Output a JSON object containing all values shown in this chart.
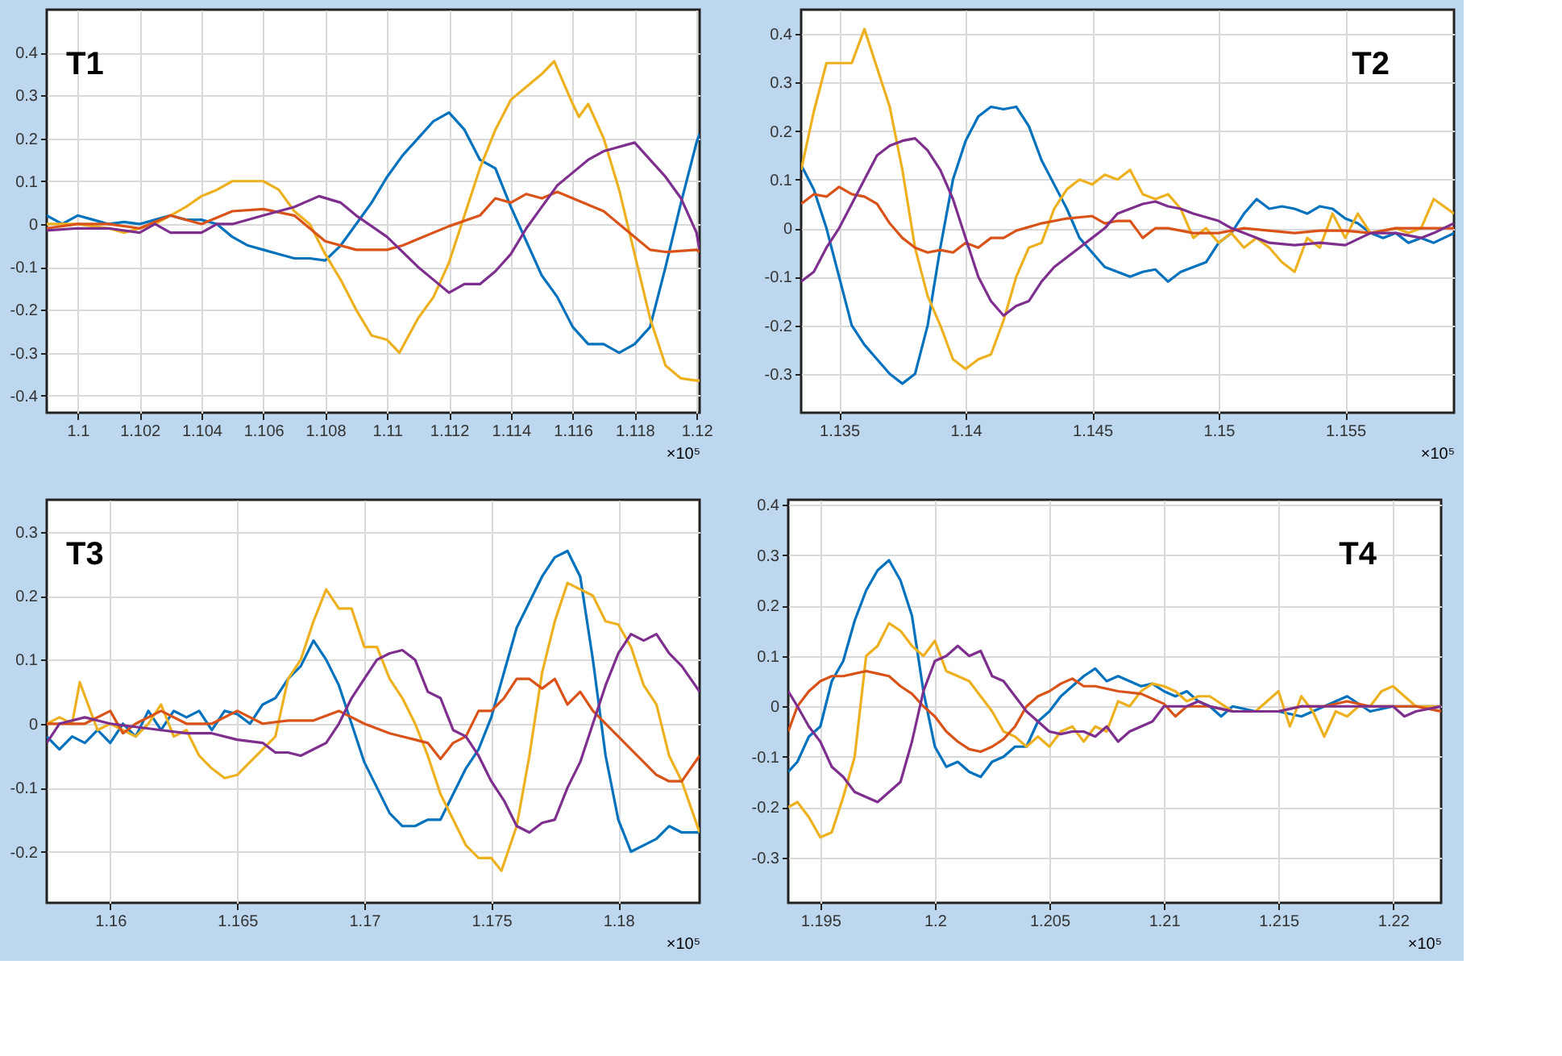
{
  "chart_data": [
    {
      "type": "line",
      "title": "T1",
      "xlabel": "×10⁵",
      "xlim": [
        1.099,
        1.1201
      ],
      "ylim": [
        -0.44,
        0.5
      ],
      "xticks": [
        1.1,
        1.102,
        1.104,
        1.106,
        1.108,
        1.11,
        1.112,
        1.114,
        1.116,
        1.118,
        1.12
      ],
      "yticks": [
        -0.4,
        -0.3,
        -0.2,
        -0.1,
        0,
        0.1,
        0.2,
        0.3,
        0.4
      ],
      "grid": true,
      "legend": false,
      "line_style": "solid",
      "series": [
        {
          "color": "#0072bd",
          "x": [
            1.099,
            1.0995,
            1.1,
            1.1005,
            1.101,
            1.1015,
            1.102,
            1.1025,
            1.103,
            1.1035,
            1.104,
            1.1045,
            1.105,
            1.1055,
            1.106,
            1.1065,
            1.107,
            1.1075,
            1.108,
            1.1085,
            1.109,
            1.1095,
            1.11,
            1.1105,
            1.111,
            1.1115,
            1.112,
            1.1125,
            1.113,
            1.1135,
            1.114,
            1.1145,
            1.115,
            1.1155,
            1.116,
            1.1165,
            1.117,
            1.1175,
            1.118,
            1.1185,
            1.119,
            1.1195,
            1.12,
            1.1201
          ],
          "values": [
            0.02,
            0.0,
            0.02,
            0.01,
            0.0,
            0.005,
            0.0,
            0.01,
            0.02,
            0.01,
            0.01,
            0.0,
            -0.03,
            -0.05,
            -0.06,
            -0.07,
            -0.08,
            -0.08,
            -0.085,
            -0.05,
            0.0,
            0.05,
            0.11,
            0.16,
            0.2,
            0.24,
            0.26,
            0.22,
            0.15,
            0.13,
            0.04,
            -0.04,
            -0.12,
            -0.17,
            -0.24,
            -0.28,
            -0.28,
            -0.3,
            -0.28,
            -0.24,
            -0.1,
            0.05,
            0.19,
            0.21
          ]
        },
        {
          "color": "#edb120",
          "x": [
            1.099,
            1.1,
            1.101,
            1.1015,
            1.102,
            1.1025,
            1.103,
            1.1035,
            1.104,
            1.1045,
            1.105,
            1.1055,
            1.106,
            1.1065,
            1.107,
            1.1075,
            1.108,
            1.1085,
            1.109,
            1.1095,
            1.11,
            1.1104,
            1.111,
            1.1115,
            1.112,
            1.1125,
            1.113,
            1.1135,
            1.114,
            1.1145,
            1.115,
            1.1154,
            1.116,
            1.1162,
            1.1165,
            1.117,
            1.1175,
            1.118,
            1.1185,
            1.119,
            1.1195,
            1.12,
            1.1201
          ],
          "values": [
            0.0,
            0.0,
            -0.01,
            -0.02,
            -0.01,
            0.0,
            0.02,
            0.04,
            0.065,
            0.08,
            0.1,
            0.1,
            0.1,
            0.08,
            0.03,
            0.0,
            -0.07,
            -0.13,
            -0.2,
            -0.26,
            -0.27,
            -0.3,
            -0.22,
            -0.17,
            -0.09,
            0.02,
            0.13,
            0.22,
            0.29,
            0.32,
            0.35,
            0.38,
            0.28,
            0.25,
            0.28,
            0.2,
            0.08,
            -0.07,
            -0.22,
            -0.33,
            -0.36,
            -0.365,
            -0.365
          ]
        },
        {
          "color": "#d95319",
          "x": [
            1.099,
            1.1,
            1.101,
            1.102,
            1.103,
            1.104,
            1.105,
            1.106,
            1.107,
            1.108,
            1.109,
            1.11,
            1.1105,
            1.111,
            1.112,
            1.113,
            1.1135,
            1.114,
            1.1145,
            1.115,
            1.1155,
            1.116,
            1.117,
            1.118,
            1.1185,
            1.119,
            1.12,
            1.1201
          ],
          "values": [
            -0.01,
            0.0,
            0.0,
            -0.01,
            0.02,
            0.0,
            0.03,
            0.035,
            0.02,
            -0.04,
            -0.06,
            -0.06,
            -0.05,
            -0.035,
            -0.005,
            0.02,
            0.06,
            0.05,
            0.07,
            0.06,
            0.075,
            0.06,
            0.03,
            -0.03,
            -0.06,
            -0.065,
            -0.06,
            -0.065
          ]
        },
        {
          "color": "#7e2f8e",
          "x": [
            1.099,
            1.1,
            1.101,
            1.102,
            1.1025,
            1.103,
            1.104,
            1.1045,
            1.105,
            1.106,
            1.107,
            1.1078,
            1.1085,
            1.109,
            1.11,
            1.111,
            1.1115,
            1.112,
            1.1125,
            1.113,
            1.1135,
            1.114,
            1.1145,
            1.115,
            1.1155,
            1.116,
            1.1165,
            1.117,
            1.118,
            1.1185,
            1.119,
            1.1195,
            1.12,
            1.1201
          ],
          "values": [
            -0.015,
            -0.01,
            -0.01,
            -0.02,
            0.0,
            -0.02,
            -0.02,
            0.0,
            0.0,
            0.02,
            0.04,
            0.065,
            0.05,
            0.02,
            -0.03,
            -0.1,
            -0.13,
            -0.16,
            -0.14,
            -0.14,
            -0.11,
            -0.07,
            -0.01,
            0.04,
            0.09,
            0.12,
            0.15,
            0.17,
            0.19,
            0.15,
            0.11,
            0.06,
            -0.02,
            -0.06
          ]
        }
      ]
    },
    {
      "type": "line",
      "title": "T2",
      "xlabel": "×10⁵",
      "xlim": [
        1.1335,
        1.1593
      ],
      "ylim": [
        -0.38,
        0.45
      ],
      "xticks": [
        1.135,
        1.14,
        1.145,
        1.15,
        1.155
      ],
      "yticks": [
        -0.3,
        -0.2,
        -0.1,
        0,
        0.1,
        0.2,
        0.3,
        0.4
      ],
      "grid": true,
      "legend": false,
      "line_style": "solid",
      "series": [
        {
          "color": "#0072bd",
          "x": [
            1.1335,
            1.134,
            1.1345,
            1.135,
            1.1355,
            1.136,
            1.1365,
            1.137,
            1.1375,
            1.138,
            1.1385,
            1.139,
            1.1395,
            1.14,
            1.1405,
            1.141,
            1.1415,
            1.142,
            1.1425,
            1.143,
            1.1435,
            1.144,
            1.1445,
            1.145,
            1.1455,
            1.146,
            1.1465,
            1.147,
            1.1475,
            1.148,
            1.1485,
            1.149,
            1.1495,
            1.15,
            1.1505,
            1.151,
            1.1515,
            1.152,
            1.1525,
            1.153,
            1.1535,
            1.154,
            1.1545,
            1.155,
            1.1555,
            1.156,
            1.1565,
            1.157,
            1.1575,
            1.158,
            1.1585,
            1.1593
          ],
          "values": [
            0.13,
            0.08,
            0.0,
            -0.1,
            -0.2,
            -0.24,
            -0.27,
            -0.3,
            -0.32,
            -0.3,
            -0.2,
            -0.04,
            0.1,
            0.18,
            0.23,
            0.25,
            0.245,
            0.25,
            0.21,
            0.14,
            0.09,
            0.04,
            -0.02,
            -0.05,
            -0.08,
            -0.09,
            -0.1,
            -0.09,
            -0.085,
            -0.11,
            -0.09,
            -0.08,
            -0.07,
            -0.03,
            -0.01,
            0.03,
            0.06,
            0.04,
            0.045,
            0.04,
            0.03,
            0.045,
            0.04,
            0.02,
            0.01,
            -0.01,
            -0.02,
            -0.01,
            -0.03,
            -0.02,
            -0.03,
            -0.01
          ]
        },
        {
          "color": "#edb120",
          "x": [
            1.1335,
            1.134,
            1.1345,
            1.135,
            1.1355,
            1.136,
            1.1365,
            1.137,
            1.1375,
            1.138,
            1.1385,
            1.139,
            1.1395,
            1.14,
            1.1405,
            1.141,
            1.1415,
            1.142,
            1.1425,
            1.143,
            1.1435,
            1.144,
            1.1445,
            1.145,
            1.1455,
            1.146,
            1.1465,
            1.147,
            1.1475,
            1.148,
            1.1485,
            1.149,
            1.1495,
            1.15,
            1.1505,
            1.151,
            1.1515,
            1.152,
            1.1525,
            1.153,
            1.1535,
            1.154,
            1.1545,
            1.155,
            1.1555,
            1.156,
            1.1565,
            1.157,
            1.1575,
            1.158,
            1.1585,
            1.1593
          ],
          "values": [
            0.12,
            0.24,
            0.34,
            0.34,
            0.34,
            0.41,
            0.33,
            0.25,
            0.12,
            -0.04,
            -0.14,
            -0.2,
            -0.27,
            -0.29,
            -0.27,
            -0.26,
            -0.19,
            -0.1,
            -0.04,
            -0.03,
            0.04,
            0.08,
            0.1,
            0.09,
            0.11,
            0.1,
            0.12,
            0.07,
            0.06,
            0.07,
            0.04,
            -0.02,
            0.0,
            -0.03,
            -0.01,
            -0.04,
            -0.02,
            -0.04,
            -0.07,
            -0.09,
            -0.02,
            -0.04,
            0.03,
            -0.02,
            0.03,
            -0.01,
            -0.005,
            0.0,
            -0.01,
            0.0,
            0.06,
            0.03
          ]
        },
        {
          "color": "#d95319",
          "x": [
            1.1335,
            1.134,
            1.1345,
            1.135,
            1.1355,
            1.136,
            1.1365,
            1.137,
            1.1375,
            1.138,
            1.1385,
            1.139,
            1.1395,
            1.14,
            1.1405,
            1.141,
            1.1415,
            1.142,
            1.143,
            1.144,
            1.145,
            1.1455,
            1.146,
            1.1465,
            1.147,
            1.1475,
            1.148,
            1.149,
            1.15,
            1.151,
            1.152,
            1.153,
            1.154,
            1.155,
            1.156,
            1.157,
            1.158,
            1.1593
          ],
          "values": [
            0.05,
            0.07,
            0.065,
            0.085,
            0.07,
            0.065,
            0.05,
            0.01,
            -0.02,
            -0.04,
            -0.05,
            -0.045,
            -0.05,
            -0.03,
            -0.04,
            -0.02,
            -0.02,
            -0.005,
            0.01,
            0.02,
            0.025,
            0.01,
            0.015,
            0.015,
            -0.02,
            0.0,
            0.0,
            -0.01,
            -0.01,
            0.0,
            -0.005,
            -0.01,
            -0.005,
            -0.005,
            -0.01,
            0.0,
            0.0,
            0.0
          ]
        },
        {
          "color": "#7e2f8e",
          "x": [
            1.1335,
            1.134,
            1.1345,
            1.135,
            1.1355,
            1.136,
            1.1365,
            1.137,
            1.1375,
            1.138,
            1.1385,
            1.139,
            1.1395,
            1.14,
            1.1405,
            1.141,
            1.1415,
            1.142,
            1.1425,
            1.143,
            1.1435,
            1.144,
            1.1445,
            1.145,
            1.1455,
            1.146,
            1.1465,
            1.147,
            1.1475,
            1.148,
            1.1485,
            1.149,
            1.15,
            1.1505,
            1.151,
            1.152,
            1.153,
            1.154,
            1.155,
            1.156,
            1.157,
            1.158,
            1.1585,
            1.1593
          ],
          "values": [
            -0.11,
            -0.09,
            -0.04,
            0.0,
            0.05,
            0.1,
            0.15,
            0.17,
            0.18,
            0.185,
            0.16,
            0.12,
            0.06,
            -0.02,
            -0.1,
            -0.15,
            -0.18,
            -0.16,
            -0.15,
            -0.11,
            -0.08,
            -0.06,
            -0.04,
            -0.02,
            0.0,
            0.03,
            0.04,
            0.05,
            0.055,
            0.045,
            0.04,
            0.03,
            0.015,
            0.0,
            -0.01,
            -0.03,
            -0.035,
            -0.03,
            -0.035,
            -0.01,
            -0.01,
            -0.02,
            -0.01,
            0.01
          ]
        }
      ]
    },
    {
      "type": "line",
      "title": "T3",
      "xlabel": "×10⁵",
      "xlim": [
        1.1575,
        1.1832
      ],
      "ylim": [
        -0.28,
        0.35
      ],
      "xticks": [
        1.16,
        1.165,
        1.17,
        1.175,
        1.18
      ],
      "yticks": [
        -0.2,
        -0.1,
        0,
        0.1,
        0.2,
        0.3
      ],
      "grid": true,
      "legend": false,
      "line_style": "solid",
      "series": [
        {
          "color": "#0072bd",
          "x": [
            1.1575,
            1.158,
            1.1585,
            1.159,
            1.1595,
            1.16,
            1.1605,
            1.161,
            1.1615,
            1.162,
            1.1625,
            1.163,
            1.1635,
            1.164,
            1.1645,
            1.165,
            1.1655,
            1.166,
            1.1665,
            1.167,
            1.1675,
            1.168,
            1.1685,
            1.169,
            1.1695,
            1.17,
            1.1705,
            1.171,
            1.1715,
            1.172,
            1.1725,
            1.173,
            1.1735,
            1.174,
            1.1745,
            1.175,
            1.1755,
            1.176,
            1.1765,
            1.177,
            1.1775,
            1.178,
            1.1785,
            1.179,
            1.1795,
            1.18,
            1.1805,
            1.181,
            1.1815,
            1.182,
            1.1825,
            1.1832
          ],
          "values": [
            -0.02,
            -0.04,
            -0.02,
            -0.03,
            -0.01,
            -0.03,
            0.0,
            -0.02,
            0.02,
            -0.01,
            0.02,
            0.01,
            0.02,
            -0.01,
            0.02,
            0.015,
            0.0,
            0.03,
            0.04,
            0.07,
            0.09,
            0.13,
            0.1,
            0.06,
            0.0,
            -0.06,
            -0.1,
            -0.14,
            -0.16,
            -0.16,
            -0.15,
            -0.15,
            -0.11,
            -0.07,
            -0.04,
            0.01,
            0.08,
            0.15,
            0.19,
            0.23,
            0.26,
            0.27,
            0.23,
            0.1,
            -0.05,
            -0.15,
            -0.2,
            -0.19,
            -0.18,
            -0.16,
            -0.17,
            -0.17
          ]
        },
        {
          "color": "#edb120",
          "x": [
            1.1575,
            1.158,
            1.1585,
            1.1588,
            1.1595,
            1.16,
            1.1605,
            1.161,
            1.1615,
            1.162,
            1.1625,
            1.163,
            1.1635,
            1.164,
            1.1645,
            1.165,
            1.1655,
            1.166,
            1.1665,
            1.167,
            1.1675,
            1.168,
            1.1685,
            1.169,
            1.1695,
            1.17,
            1.1705,
            1.171,
            1.1715,
            1.172,
            1.1725,
            1.173,
            1.1735,
            1.174,
            1.1745,
            1.175,
            1.1754,
            1.176,
            1.1765,
            1.177,
            1.1775,
            1.178,
            1.1785,
            1.179,
            1.1795,
            1.18,
            1.1805,
            1.181,
            1.1815,
            1.182,
            1.1825,
            1.1832
          ],
          "values": [
            0.0,
            0.01,
            0.0,
            0.065,
            -0.01,
            0.0,
            -0.01,
            -0.02,
            0.0,
            0.03,
            -0.02,
            -0.01,
            -0.05,
            -0.07,
            -0.085,
            -0.08,
            -0.06,
            -0.04,
            -0.02,
            0.07,
            0.1,
            0.16,
            0.21,
            0.18,
            0.18,
            0.12,
            0.12,
            0.07,
            0.04,
            0.0,
            -0.05,
            -0.11,
            -0.15,
            -0.19,
            -0.21,
            -0.21,
            -0.23,
            -0.16,
            -0.05,
            0.08,
            0.16,
            0.22,
            0.21,
            0.2,
            0.16,
            0.155,
            0.12,
            0.06,
            0.03,
            -0.05,
            -0.09,
            -0.17
          ]
        },
        {
          "color": "#d95319",
          "x": [
            1.1575,
            1.158,
            1.159,
            1.16,
            1.1605,
            1.161,
            1.162,
            1.163,
            1.164,
            1.165,
            1.166,
            1.167,
            1.168,
            1.169,
            1.17,
            1.171,
            1.172,
            1.1725,
            1.173,
            1.1735,
            1.174,
            1.1745,
            1.175,
            1.1755,
            1.176,
            1.1765,
            1.177,
            1.1775,
            1.178,
            1.1785,
            1.179,
            1.18,
            1.1805,
            1.181,
            1.1815,
            1.182,
            1.1825,
            1.1832
          ],
          "values": [
            0.0,
            0.0,
            0.0,
            0.02,
            -0.015,
            0.0,
            0.02,
            0.0,
            0.0,
            0.02,
            0.0,
            0.005,
            0.005,
            0.02,
            0.0,
            -0.015,
            -0.025,
            -0.03,
            -0.055,
            -0.03,
            -0.02,
            0.02,
            0.02,
            0.04,
            0.07,
            0.07,
            0.055,
            0.07,
            0.03,
            0.05,
            0.02,
            -0.02,
            -0.04,
            -0.06,
            -0.08,
            -0.09,
            -0.09,
            -0.05
          ]
        },
        {
          "color": "#7e2f8e",
          "x": [
            1.1575,
            1.158,
            1.159,
            1.16,
            1.161,
            1.162,
            1.163,
            1.164,
            1.165,
            1.166,
            1.1665,
            1.167,
            1.1675,
            1.168,
            1.1685,
            1.169,
            1.1695,
            1.17,
            1.1705,
            1.171,
            1.1715,
            1.172,
            1.1725,
            1.173,
            1.1735,
            1.174,
            1.1745,
            1.175,
            1.1755,
            1.176,
            1.1765,
            1.177,
            1.1775,
            1.178,
            1.1785,
            1.179,
            1.1795,
            1.18,
            1.1805,
            1.181,
            1.1815,
            1.182,
            1.1825,
            1.1832
          ],
          "values": [
            -0.03,
            0.0,
            0.01,
            0.0,
            -0.005,
            -0.01,
            -0.015,
            -0.015,
            -0.025,
            -0.03,
            -0.045,
            -0.045,
            -0.05,
            -0.04,
            -0.03,
            0.0,
            0.04,
            0.07,
            0.1,
            0.11,
            0.115,
            0.1,
            0.05,
            0.04,
            -0.01,
            -0.02,
            -0.05,
            -0.09,
            -0.12,
            -0.16,
            -0.17,
            -0.155,
            -0.15,
            -0.1,
            -0.06,
            0.0,
            0.06,
            0.11,
            0.14,
            0.13,
            0.14,
            0.11,
            0.09,
            0.05
          ]
        }
      ]
    },
    {
      "type": "line",
      "title": "T4",
      "xlabel": "×10⁵",
      "xlim": [
        1.1936,
        1.2221
      ],
      "ylim": [
        -0.39,
        0.41
      ],
      "xticks": [
        1.195,
        1.2,
        1.205,
        1.21,
        1.215,
        1.22
      ],
      "yticks": [
        -0.3,
        -0.2,
        -0.1,
        0,
        0.1,
        0.2,
        0.3,
        0.4
      ],
      "grid": true,
      "legend": false,
      "line_style": "solid",
      "series": [
        {
          "color": "#0072bd",
          "x": [
            1.1936,
            1.194,
            1.1945,
            1.195,
            1.1955,
            1.196,
            1.1965,
            1.197,
            1.1975,
            1.198,
            1.1985,
            1.199,
            1.1995,
            1.2,
            1.2005,
            1.201,
            1.2015,
            1.202,
            1.2025,
            1.203,
            1.2035,
            1.204,
            1.2045,
            1.205,
            1.2055,
            1.206,
            1.2065,
            1.207,
            1.2075,
            1.208,
            1.2085,
            1.209,
            1.2095,
            1.21,
            1.2105,
            1.211,
            1.2115,
            1.212,
            1.2125,
            1.213,
            1.214,
            1.215,
            1.216,
            1.217,
            1.218,
            1.219,
            1.22,
            1.221,
            1.2221
          ],
          "values": [
            -0.13,
            -0.11,
            -0.06,
            -0.04,
            0.05,
            0.09,
            0.17,
            0.23,
            0.27,
            0.29,
            0.25,
            0.18,
            0.03,
            -0.08,
            -0.12,
            -0.11,
            -0.13,
            -0.14,
            -0.11,
            -0.1,
            -0.08,
            -0.08,
            -0.03,
            -0.01,
            0.02,
            0.04,
            0.06,
            0.075,
            0.05,
            0.06,
            0.05,
            0.04,
            0.045,
            0.03,
            0.02,
            0.03,
            0.01,
            0.0,
            -0.02,
            0.0,
            -0.01,
            -0.01,
            -0.02,
            0.0,
            0.02,
            -0.01,
            0.0,
            0.0,
            0.0
          ]
        },
        {
          "color": "#edb120",
          "x": [
            1.1936,
            1.194,
            1.1945,
            1.195,
            1.1955,
            1.196,
            1.1965,
            1.197,
            1.1975,
            1.198,
            1.1985,
            1.199,
            1.1995,
            1.2,
            1.2005,
            1.201,
            1.2015,
            1.202,
            1.2025,
            1.203,
            1.2035,
            1.204,
            1.2045,
            1.205,
            1.2055,
            1.206,
            1.2065,
            1.207,
            1.2075,
            1.208,
            1.2085,
            1.209,
            1.2095,
            1.21,
            1.2105,
            1.211,
            1.2115,
            1.212,
            1.213,
            1.214,
            1.215,
            1.2155,
            1.216,
            1.2165,
            1.217,
            1.2175,
            1.218,
            1.2185,
            1.219,
            1.2195,
            1.22,
            1.2205,
            1.221,
            1.2221
          ],
          "values": [
            -0.2,
            -0.19,
            -0.22,
            -0.26,
            -0.25,
            -0.18,
            -0.1,
            0.1,
            0.12,
            0.165,
            0.15,
            0.12,
            0.1,
            0.13,
            0.07,
            0.06,
            0.05,
            0.02,
            -0.01,
            -0.05,
            -0.06,
            -0.08,
            -0.06,
            -0.08,
            -0.05,
            -0.04,
            -0.07,
            -0.04,
            -0.05,
            0.01,
            0.0,
            0.03,
            0.045,
            0.04,
            0.03,
            0.01,
            0.02,
            0.02,
            -0.01,
            -0.01,
            0.03,
            -0.04,
            0.02,
            -0.01,
            -0.06,
            -0.01,
            -0.02,
            0.0,
            0.0,
            0.03,
            0.04,
            0.02,
            0.0,
            0.0
          ]
        },
        {
          "color": "#d95319",
          "x": [
            1.1936,
            1.194,
            1.1945,
            1.195,
            1.1955,
            1.196,
            1.1965,
            1.197,
            1.1975,
            1.198,
            1.1985,
            1.199,
            1.1995,
            1.2,
            1.2005,
            1.201,
            1.2015,
            1.202,
            1.2025,
            1.203,
            1.2035,
            1.204,
            1.2045,
            1.205,
            1.2055,
            1.206,
            1.2065,
            1.207,
            1.208,
            1.209,
            1.21,
            1.2105,
            1.211,
            1.212,
            1.213,
            1.214,
            1.215,
            1.216,
            1.217,
            1.218,
            1.219,
            1.22,
            1.221,
            1.2221
          ],
          "values": [
            -0.05,
            0.0,
            0.03,
            0.05,
            0.06,
            0.06,
            0.065,
            0.07,
            0.065,
            0.06,
            0.04,
            0.025,
            0.0,
            -0.02,
            -0.05,
            -0.07,
            -0.085,
            -0.09,
            -0.08,
            -0.065,
            -0.04,
            0.0,
            0.02,
            0.03,
            0.045,
            0.055,
            0.04,
            0.04,
            0.03,
            0.025,
            0.005,
            -0.02,
            0.0,
            0.0,
            -0.01,
            -0.01,
            -0.01,
            0.0,
            0.0,
            0.01,
            0.0,
            0.0,
            0.0,
            -0.01
          ]
        },
        {
          "color": "#7e2f8e",
          "x": [
            1.1936,
            1.194,
            1.1945,
            1.195,
            1.1955,
            1.196,
            1.1965,
            1.197,
            1.1975,
            1.198,
            1.1985,
            1.199,
            1.1995,
            1.2,
            1.2005,
            1.201,
            1.2015,
            1.202,
            1.2025,
            1.203,
            1.2035,
            1.204,
            1.2045,
            1.205,
            1.2055,
            1.206,
            1.2065,
            1.207,
            1.2075,
            1.208,
            1.2085,
            1.209,
            1.2095,
            1.21,
            1.211,
            1.2115,
            1.212,
            1.213,
            1.214,
            1.215,
            1.216,
            1.217,
            1.218,
            1.219,
            1.22,
            1.2205,
            1.221,
            1.2221
          ],
          "values": [
            0.03,
            0.0,
            -0.04,
            -0.07,
            -0.12,
            -0.14,
            -0.17,
            -0.18,
            -0.19,
            -0.17,
            -0.15,
            -0.07,
            0.03,
            0.09,
            0.1,
            0.12,
            0.1,
            0.11,
            0.06,
            0.05,
            0.02,
            -0.01,
            -0.03,
            -0.05,
            -0.055,
            -0.05,
            -0.05,
            -0.06,
            -0.04,
            -0.07,
            -0.05,
            -0.04,
            -0.03,
            0.0,
            0.0,
            0.01,
            0.0,
            -0.01,
            -0.01,
            -0.01,
            0.0,
            0.0,
            0.0,
            0.0,
            0.0,
            -0.02,
            -0.01,
            0.0
          ]
        }
      ]
    }
  ]
}
